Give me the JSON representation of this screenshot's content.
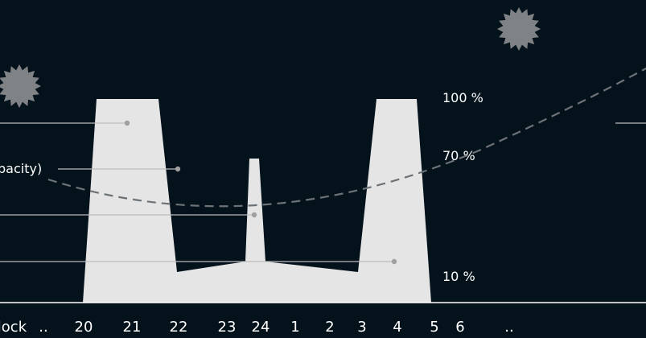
{
  "chart_data": {
    "type": "area",
    "x_labels": [
      "..",
      "20",
      "21",
      "22",
      "23",
      "24",
      "1",
      "2",
      "3",
      "4",
      "5",
      "6",
      "..",
      "o´clock"
    ],
    "y_labels": [
      "100 %",
      "70 %",
      "10 %"
    ],
    "annotation_partial_text": "pacity)",
    "colors": {
      "background": "#04121c",
      "area_fill": "#e5e5e5",
      "dashed_curve": "#6d7276",
      "leader_line": "#bdbdbd",
      "leader_dot": "#a0a0a0",
      "star": "#7f8386",
      "text": "#ffffff"
    }
  },
  "icons": [
    "starburst-icon",
    "starburst-icon"
  ]
}
